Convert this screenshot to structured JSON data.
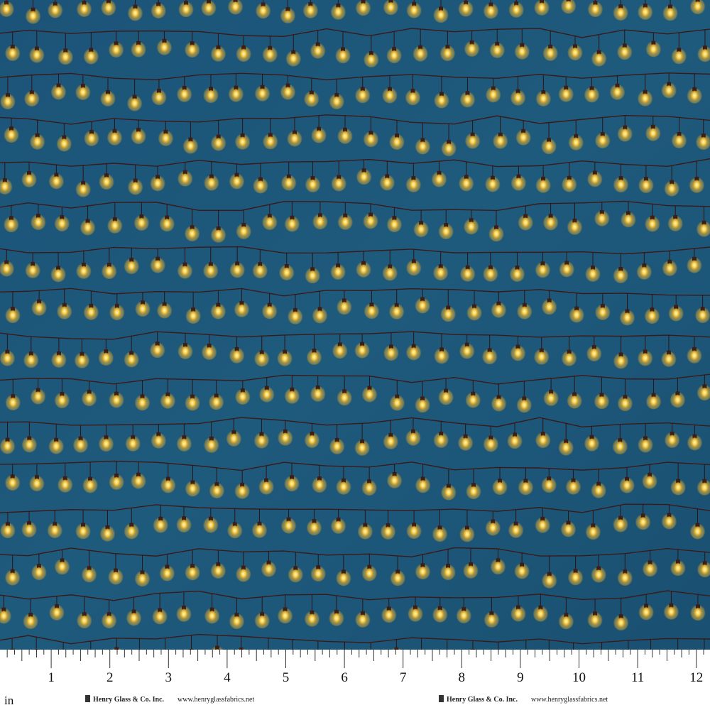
{
  "ruler": {
    "unit": "in",
    "labels": [
      1,
      2,
      3,
      4,
      5,
      6,
      7,
      8,
      9,
      10,
      11,
      12
    ]
  },
  "credits": [
    {
      "brand": "Henry Glass & Co. Inc.",
      "url": "www.henryglassfabrics.net"
    },
    {
      "brand": "Henry Glass & Co. Inc.",
      "url": "www.henryglassfabrics.net"
    }
  ]
}
